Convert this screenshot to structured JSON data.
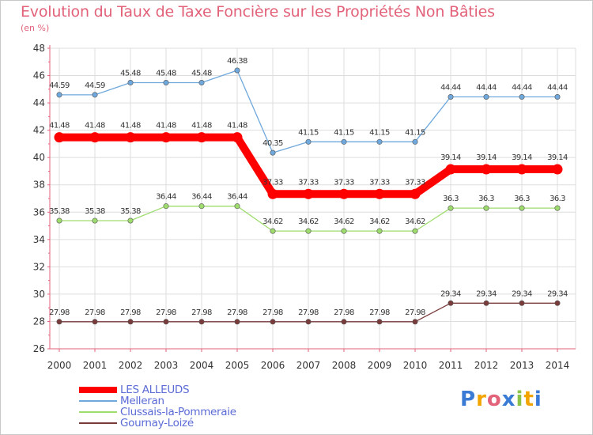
{
  "chart_data": {
    "type": "line",
    "title": "Evolution du Taux de Taxe Foncière sur les Propriétés Non Bâties",
    "ylabel": "(en %)",
    "xlabel": "",
    "ylim": [
      26,
      48
    ],
    "yticks": [
      26,
      28,
      30,
      32,
      34,
      36,
      38,
      40,
      42,
      44,
      46,
      48
    ],
    "categories": [
      "2000",
      "2001",
      "2002",
      "2003",
      "2004",
      "2005",
      "2006",
      "2007",
      "2008",
      "2009",
      "2010",
      "2011",
      "2012",
      "2013",
      "2014"
    ],
    "series": [
      {
        "name": "LES ALLEUDS",
        "color": "#ff0000",
        "values": [
          41.48,
          41.48,
          41.48,
          41.48,
          41.48,
          41.48,
          37.33,
          37.33,
          37.33,
          37.33,
          37.33,
          39.14,
          39.14,
          39.14,
          39.14
        ],
        "labels": [
          "41.48",
          "41.48",
          "41.48",
          "41.48",
          "41.48",
          "41.48",
          "37.33",
          "37.33",
          "37.33",
          "37.33",
          "37.33",
          "39.14",
          "39.14",
          "39.14",
          "39.14"
        ]
      },
      {
        "name": "Melleran",
        "color": "#6fa8dc",
        "values": [
          44.59,
          44.59,
          45.48,
          45.48,
          45.48,
          46.38,
          40.35,
          41.15,
          41.15,
          41.15,
          41.15,
          44.44,
          44.44,
          44.44,
          44.44
        ],
        "labels": [
          "44.59",
          "44.59",
          "45.48",
          "45.48",
          "45.48",
          "46.38",
          "40.35",
          "41.15",
          "41.15",
          "41.15",
          "41.15",
          "44.44",
          "44.44",
          "44.44",
          "44.44"
        ]
      },
      {
        "name": "Clussais-la-Pommeraie",
        "color": "#9fdc6e",
        "values": [
          35.38,
          35.38,
          35.38,
          36.44,
          36.44,
          36.44,
          34.62,
          34.62,
          34.62,
          34.62,
          34.62,
          36.3,
          36.3,
          36.3,
          36.3
        ],
        "labels": [
          "35.38",
          "35.38",
          "35.38",
          "36.44",
          "36.44",
          "36.44",
          "34.62",
          "34.62",
          "34.62",
          "34.62",
          "34.62",
          "36.3",
          "36.3",
          "36.3",
          "36.3"
        ]
      },
      {
        "name": "Gournay-Loizé",
        "color": "#7a3b3b",
        "values": [
          27.98,
          27.98,
          27.98,
          27.98,
          27.98,
          27.98,
          27.98,
          27.98,
          27.98,
          27.98,
          27.98,
          29.34,
          29.34,
          29.34,
          29.34
        ],
        "labels": [
          "27.98",
          "27.98",
          "27.98",
          "27.98",
          "27.98",
          "27.98",
          "27.98",
          "27.98",
          "27.98",
          "27.98",
          "27.98",
          "29.34",
          "29.34",
          "29.34",
          "29.34"
        ]
      }
    ],
    "grid": true,
    "legend_position": "bottom-left"
  },
  "logo": {
    "letters": [
      "P",
      "r",
      "o",
      "x",
      "i",
      "t",
      "i"
    ],
    "colors": [
      "#3a7bd5",
      "#f2a400",
      "#e2627a",
      "#3a7bd5",
      "#8bc34a",
      "#f2a400",
      "#3a7bd5"
    ]
  }
}
